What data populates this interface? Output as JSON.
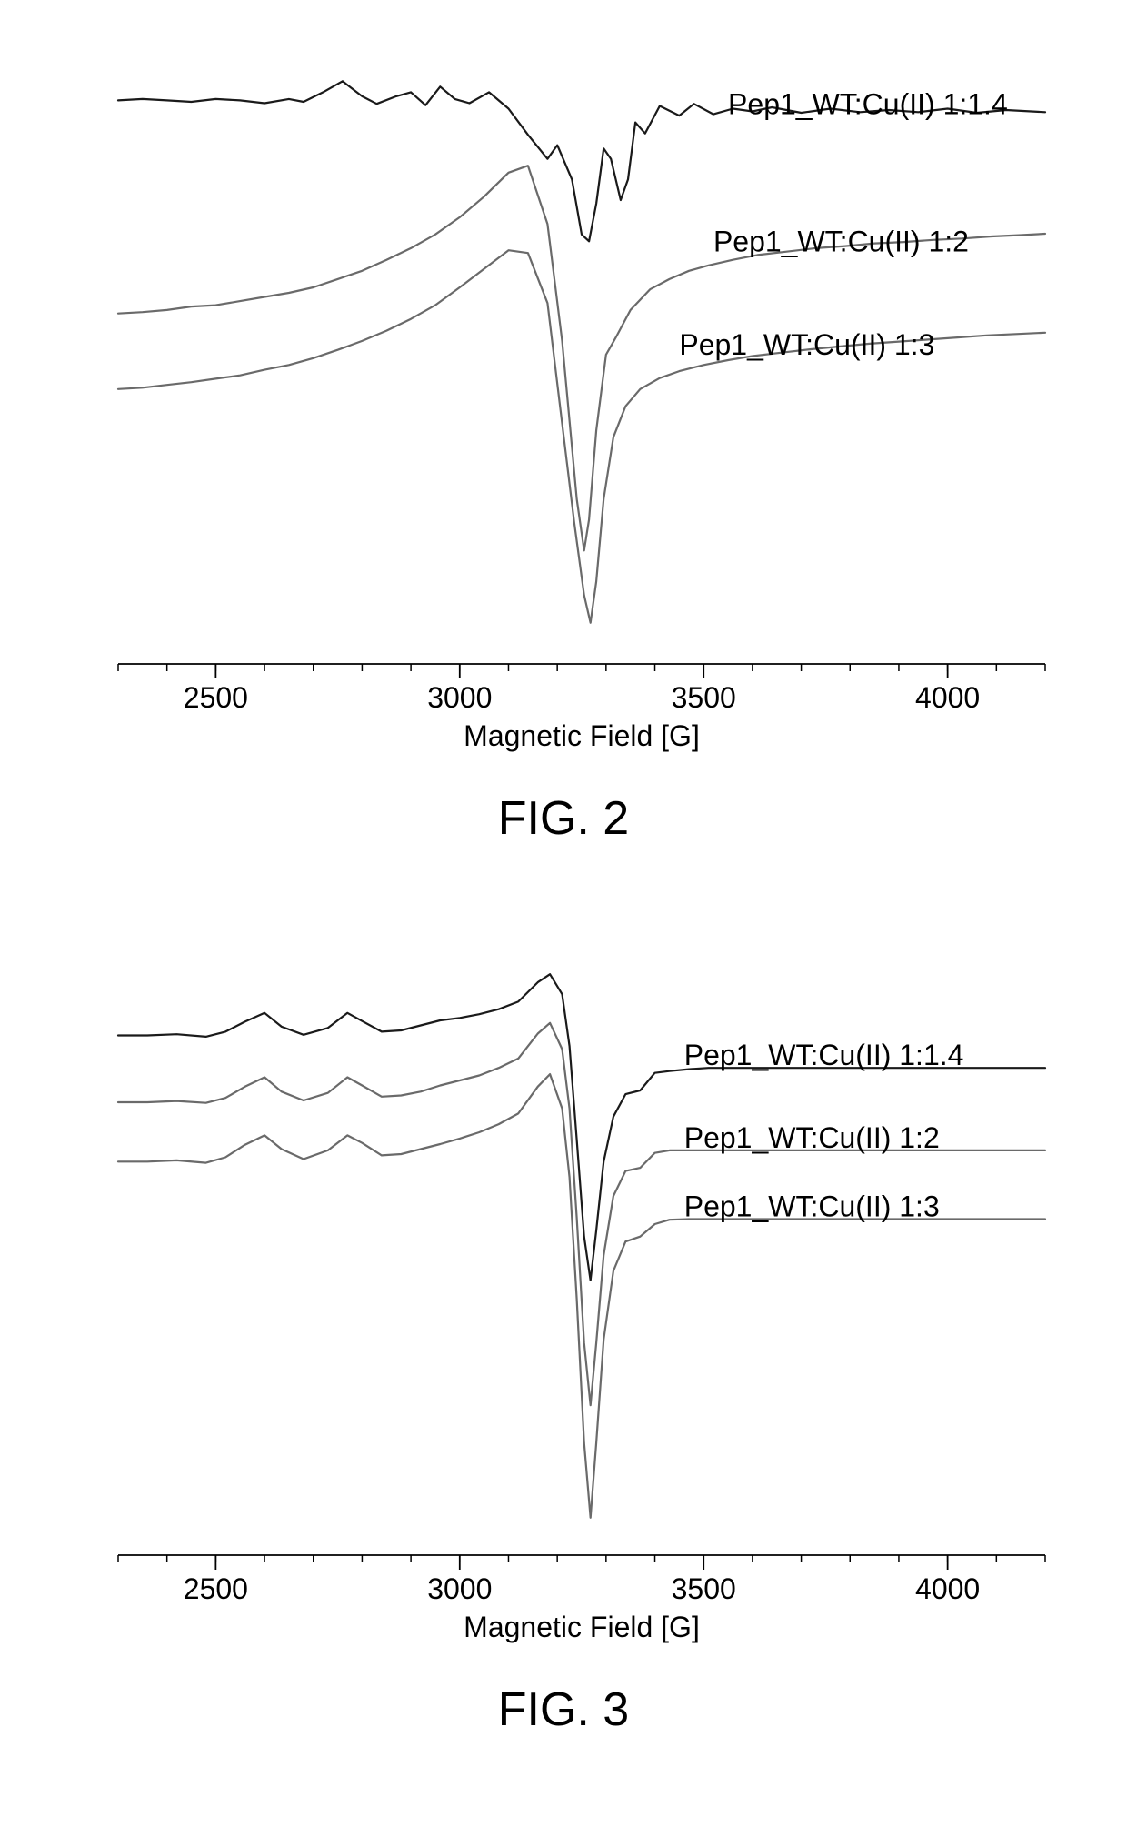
{
  "figure2": {
    "type": "line",
    "caption": "FIG. 2",
    "xlabel": "Magnetic Field [G]",
    "xlim": [
      2300,
      4200
    ],
    "xtick_major": [
      2500,
      3000,
      3500,
      4000
    ],
    "xtick_minor_step": 100,
    "label_fontsize": 32,
    "tick_fontsize": 32,
    "caption_fontsize": 52,
    "background_color": "#ffffff",
    "axis_color": "#000000",
    "text_color": "#000000",
    "line_width": 2.2,
    "series": [
      {
        "label": "Pep1_WT:Cu(II) 1:1.4",
        "color": "#1a1a1a",
        "label_pos": [
          3550,
          40
        ],
        "data": [
          [
            2300,
            60
          ],
          [
            2350,
            62
          ],
          [
            2400,
            60
          ],
          [
            2450,
            58
          ],
          [
            2500,
            62
          ],
          [
            2550,
            60
          ],
          [
            2600,
            56
          ],
          [
            2650,
            62
          ],
          [
            2680,
            58
          ],
          [
            2720,
            72
          ],
          [
            2760,
            88
          ],
          [
            2800,
            66
          ],
          [
            2830,
            55
          ],
          [
            2870,
            66
          ],
          [
            2900,
            72
          ],
          [
            2930,
            53
          ],
          [
            2960,
            80
          ],
          [
            2990,
            62
          ],
          [
            3020,
            56
          ],
          [
            3060,
            72
          ],
          [
            3100,
            48
          ],
          [
            3140,
            10
          ],
          [
            3180,
            -25
          ],
          [
            3200,
            -5
          ],
          [
            3230,
            -55
          ],
          [
            3250,
            -135
          ],
          [
            3265,
            -145
          ],
          [
            3280,
            -90
          ],
          [
            3295,
            -10
          ],
          [
            3310,
            -25
          ],
          [
            3330,
            -85
          ],
          [
            3345,
            -55
          ],
          [
            3360,
            28
          ],
          [
            3380,
            12
          ],
          [
            3410,
            52
          ],
          [
            3450,
            38
          ],
          [
            3480,
            55
          ],
          [
            3520,
            40
          ],
          [
            3560,
            48
          ],
          [
            3600,
            44
          ],
          [
            3640,
            50
          ],
          [
            3700,
            42
          ],
          [
            3760,
            48
          ],
          [
            3820,
            43
          ],
          [
            3880,
            46
          ],
          [
            3940,
            43
          ],
          [
            4000,
            48
          ],
          [
            4060,
            42
          ],
          [
            4120,
            46
          ],
          [
            4200,
            43
          ]
        ]
      },
      {
        "label": "Pep1_WT:Cu(II) 1:2",
        "color": "#6a6a6a",
        "label_pos": [
          3520,
          -160
        ],
        "data": [
          [
            2300,
            -250
          ],
          [
            2350,
            -248
          ],
          [
            2400,
            -245
          ],
          [
            2450,
            -240
          ],
          [
            2500,
            -238
          ],
          [
            2550,
            -232
          ],
          [
            2600,
            -226
          ],
          [
            2650,
            -220
          ],
          [
            2700,
            -212
          ],
          [
            2750,
            -200
          ],
          [
            2800,
            -188
          ],
          [
            2850,
            -172
          ],
          [
            2900,
            -155
          ],
          [
            2950,
            -135
          ],
          [
            3000,
            -110
          ],
          [
            3050,
            -80
          ],
          [
            3100,
            -45
          ],
          [
            3140,
            -35
          ],
          [
            3180,
            -120
          ],
          [
            3210,
            -290
          ],
          [
            3240,
            -520
          ],
          [
            3255,
            -595
          ],
          [
            3265,
            -550
          ],
          [
            3280,
            -420
          ],
          [
            3300,
            -310
          ],
          [
            3320,
            -285
          ],
          [
            3350,
            -245
          ],
          [
            3390,
            -215
          ],
          [
            3430,
            -200
          ],
          [
            3470,
            -188
          ],
          [
            3510,
            -180
          ],
          [
            3560,
            -172
          ],
          [
            3610,
            -165
          ],
          [
            3670,
            -160
          ],
          [
            3730,
            -155
          ],
          [
            3790,
            -152
          ],
          [
            3850,
            -148
          ],
          [
            3910,
            -146
          ],
          [
            3970,
            -143
          ],
          [
            4030,
            -141
          ],
          [
            4090,
            -138
          ],
          [
            4150,
            -136
          ],
          [
            4200,
            -134
          ]
        ]
      },
      {
        "label": "Pep1_WT:Cu(II) 1:3",
        "color": "#6a6a6a",
        "label_pos": [
          3450,
          -310
        ],
        "data": [
          [
            2300,
            -360
          ],
          [
            2350,
            -358
          ],
          [
            2400,
            -354
          ],
          [
            2450,
            -350
          ],
          [
            2500,
            -345
          ],
          [
            2550,
            -340
          ],
          [
            2600,
            -332
          ],
          [
            2650,
            -325
          ],
          [
            2700,
            -315
          ],
          [
            2750,
            -303
          ],
          [
            2800,
            -290
          ],
          [
            2850,
            -275
          ],
          [
            2900,
            -258
          ],
          [
            2950,
            -238
          ],
          [
            3000,
            -212
          ],
          [
            3050,
            -185
          ],
          [
            3100,
            -158
          ],
          [
            3140,
            -162
          ],
          [
            3180,
            -235
          ],
          [
            3210,
            -410
          ],
          [
            3235,
            -555
          ],
          [
            3255,
            -660
          ],
          [
            3268,
            -700
          ],
          [
            3280,
            -640
          ],
          [
            3295,
            -520
          ],
          [
            3315,
            -430
          ],
          [
            3340,
            -385
          ],
          [
            3370,
            -360
          ],
          [
            3410,
            -344
          ],
          [
            3450,
            -334
          ],
          [
            3500,
            -325
          ],
          [
            3550,
            -318
          ],
          [
            3600,
            -312
          ],
          [
            3660,
            -307
          ],
          [
            3720,
            -302
          ],
          [
            3780,
            -298
          ],
          [
            3840,
            -294
          ],
          [
            3900,
            -291
          ],
          [
            3960,
            -288
          ],
          [
            4020,
            -285
          ],
          [
            4080,
            -282
          ],
          [
            4140,
            -280
          ],
          [
            4200,
            -278
          ]
        ]
      }
    ],
    "ylim": [
      -760,
      140
    ]
  },
  "figure3": {
    "type": "line",
    "caption": "FIG. 3",
    "xlabel": "Magnetic Field [G]",
    "xlim": [
      2300,
      4200
    ],
    "xtick_major": [
      2500,
      3000,
      3500,
      4000
    ],
    "xtick_minor_step": 100,
    "label_fontsize": 32,
    "tick_fontsize": 32,
    "caption_fontsize": 52,
    "background_color": "#ffffff",
    "axis_color": "#000000",
    "text_color": "#000000",
    "line_width": 2.2,
    "series": [
      {
        "label": "Pep1_WT:Cu(II) 1:1.4",
        "color": "#1a1a1a",
        "label_pos": [
          3460,
          -35
        ],
        "data": [
          [
            2300,
            12
          ],
          [
            2360,
            12
          ],
          [
            2420,
            14
          ],
          [
            2480,
            10
          ],
          [
            2520,
            18
          ],
          [
            2560,
            34
          ],
          [
            2600,
            48
          ],
          [
            2635,
            26
          ],
          [
            2680,
            13
          ],
          [
            2730,
            24
          ],
          [
            2770,
            48
          ],
          [
            2800,
            35
          ],
          [
            2840,
            18
          ],
          [
            2880,
            20
          ],
          [
            2920,
            28
          ],
          [
            2960,
            36
          ],
          [
            3000,
            40
          ],
          [
            3040,
            46
          ],
          [
            3080,
            54
          ],
          [
            3120,
            66
          ],
          [
            3160,
            97
          ],
          [
            3185,
            110
          ],
          [
            3210,
            78
          ],
          [
            3225,
            -5
          ],
          [
            3240,
            -155
          ],
          [
            3255,
            -310
          ],
          [
            3268,
            -380
          ],
          [
            3280,
            -300
          ],
          [
            3295,
            -190
          ],
          [
            3315,
            -118
          ],
          [
            3340,
            -82
          ],
          [
            3370,
            -76
          ],
          [
            3400,
            -48
          ],
          [
            3430,
            -45
          ],
          [
            3470,
            -42
          ],
          [
            3510,
            -40
          ],
          [
            3560,
            -40
          ],
          [
            3610,
            -40
          ],
          [
            3670,
            -40
          ],
          [
            3730,
            -40
          ],
          [
            3800,
            -40
          ],
          [
            3870,
            -40
          ],
          [
            3940,
            -40
          ],
          [
            4010,
            -40
          ],
          [
            4080,
            -40
          ],
          [
            4150,
            -40
          ],
          [
            4200,
            -40
          ]
        ]
      },
      {
        "label": "Pep1_WT:Cu(II) 1:2",
        "color": "#6a6a6a",
        "label_pos": [
          3460,
          -168
        ],
        "data": [
          [
            2300,
            -95
          ],
          [
            2360,
            -95
          ],
          [
            2420,
            -93
          ],
          [
            2480,
            -96
          ],
          [
            2520,
            -88
          ],
          [
            2560,
            -70
          ],
          [
            2600,
            -55
          ],
          [
            2635,
            -78
          ],
          [
            2680,
            -92
          ],
          [
            2730,
            -80
          ],
          [
            2770,
            -55
          ],
          [
            2800,
            -68
          ],
          [
            2840,
            -86
          ],
          [
            2880,
            -84
          ],
          [
            2920,
            -78
          ],
          [
            2960,
            -68
          ],
          [
            3000,
            -60
          ],
          [
            3040,
            -52
          ],
          [
            3080,
            -40
          ],
          [
            3120,
            -25
          ],
          [
            3160,
            15
          ],
          [
            3185,
            32
          ],
          [
            3210,
            -10
          ],
          [
            3225,
            -105
          ],
          [
            3240,
            -280
          ],
          [
            3255,
            -480
          ],
          [
            3268,
            -580
          ],
          [
            3280,
            -480
          ],
          [
            3295,
            -340
          ],
          [
            3315,
            -245
          ],
          [
            3340,
            -205
          ],
          [
            3370,
            -200
          ],
          [
            3400,
            -176
          ],
          [
            3430,
            -172
          ],
          [
            3470,
            -172
          ],
          [
            3510,
            -172
          ],
          [
            3560,
            -172
          ],
          [
            3610,
            -172
          ],
          [
            3670,
            -172
          ],
          [
            3730,
            -172
          ],
          [
            3800,
            -172
          ],
          [
            3870,
            -172
          ],
          [
            3940,
            -172
          ],
          [
            4010,
            -172
          ],
          [
            4080,
            -172
          ],
          [
            4150,
            -172
          ],
          [
            4200,
            -172
          ]
        ]
      },
      {
        "label": "Pep1_WT:Cu(II) 1:3",
        "color": "#6a6a6a",
        "label_pos": [
          3460,
          -278
        ],
        "data": [
          [
            2300,
            -190
          ],
          [
            2360,
            -190
          ],
          [
            2420,
            -188
          ],
          [
            2480,
            -192
          ],
          [
            2520,
            -183
          ],
          [
            2560,
            -163
          ],
          [
            2600,
            -148
          ],
          [
            2635,
            -170
          ],
          [
            2680,
            -186
          ],
          [
            2730,
            -172
          ],
          [
            2770,
            -148
          ],
          [
            2800,
            -160
          ],
          [
            2840,
            -180
          ],
          [
            2880,
            -178
          ],
          [
            2920,
            -170
          ],
          [
            2960,
            -162
          ],
          [
            3000,
            -153
          ],
          [
            3040,
            -143
          ],
          [
            3080,
            -130
          ],
          [
            3120,
            -113
          ],
          [
            3160,
            -70
          ],
          [
            3185,
            -50
          ],
          [
            3210,
            -105
          ],
          [
            3225,
            -215
          ],
          [
            3240,
            -410
          ],
          [
            3255,
            -640
          ],
          [
            3268,
            -760
          ],
          [
            3280,
            -640
          ],
          [
            3295,
            -475
          ],
          [
            3315,
            -365
          ],
          [
            3340,
            -318
          ],
          [
            3370,
            -310
          ],
          [
            3400,
            -290
          ],
          [
            3430,
            -283
          ],
          [
            3470,
            -282
          ],
          [
            3510,
            -282
          ],
          [
            3560,
            -282
          ],
          [
            3610,
            -282
          ],
          [
            3670,
            -282
          ],
          [
            3730,
            -282
          ],
          [
            3800,
            -282
          ],
          [
            3870,
            -282
          ],
          [
            3940,
            -282
          ],
          [
            4010,
            -282
          ],
          [
            4080,
            -282
          ],
          [
            4150,
            -282
          ],
          [
            4200,
            -282
          ]
        ]
      }
    ],
    "ylim": [
      -820,
      170
    ]
  }
}
